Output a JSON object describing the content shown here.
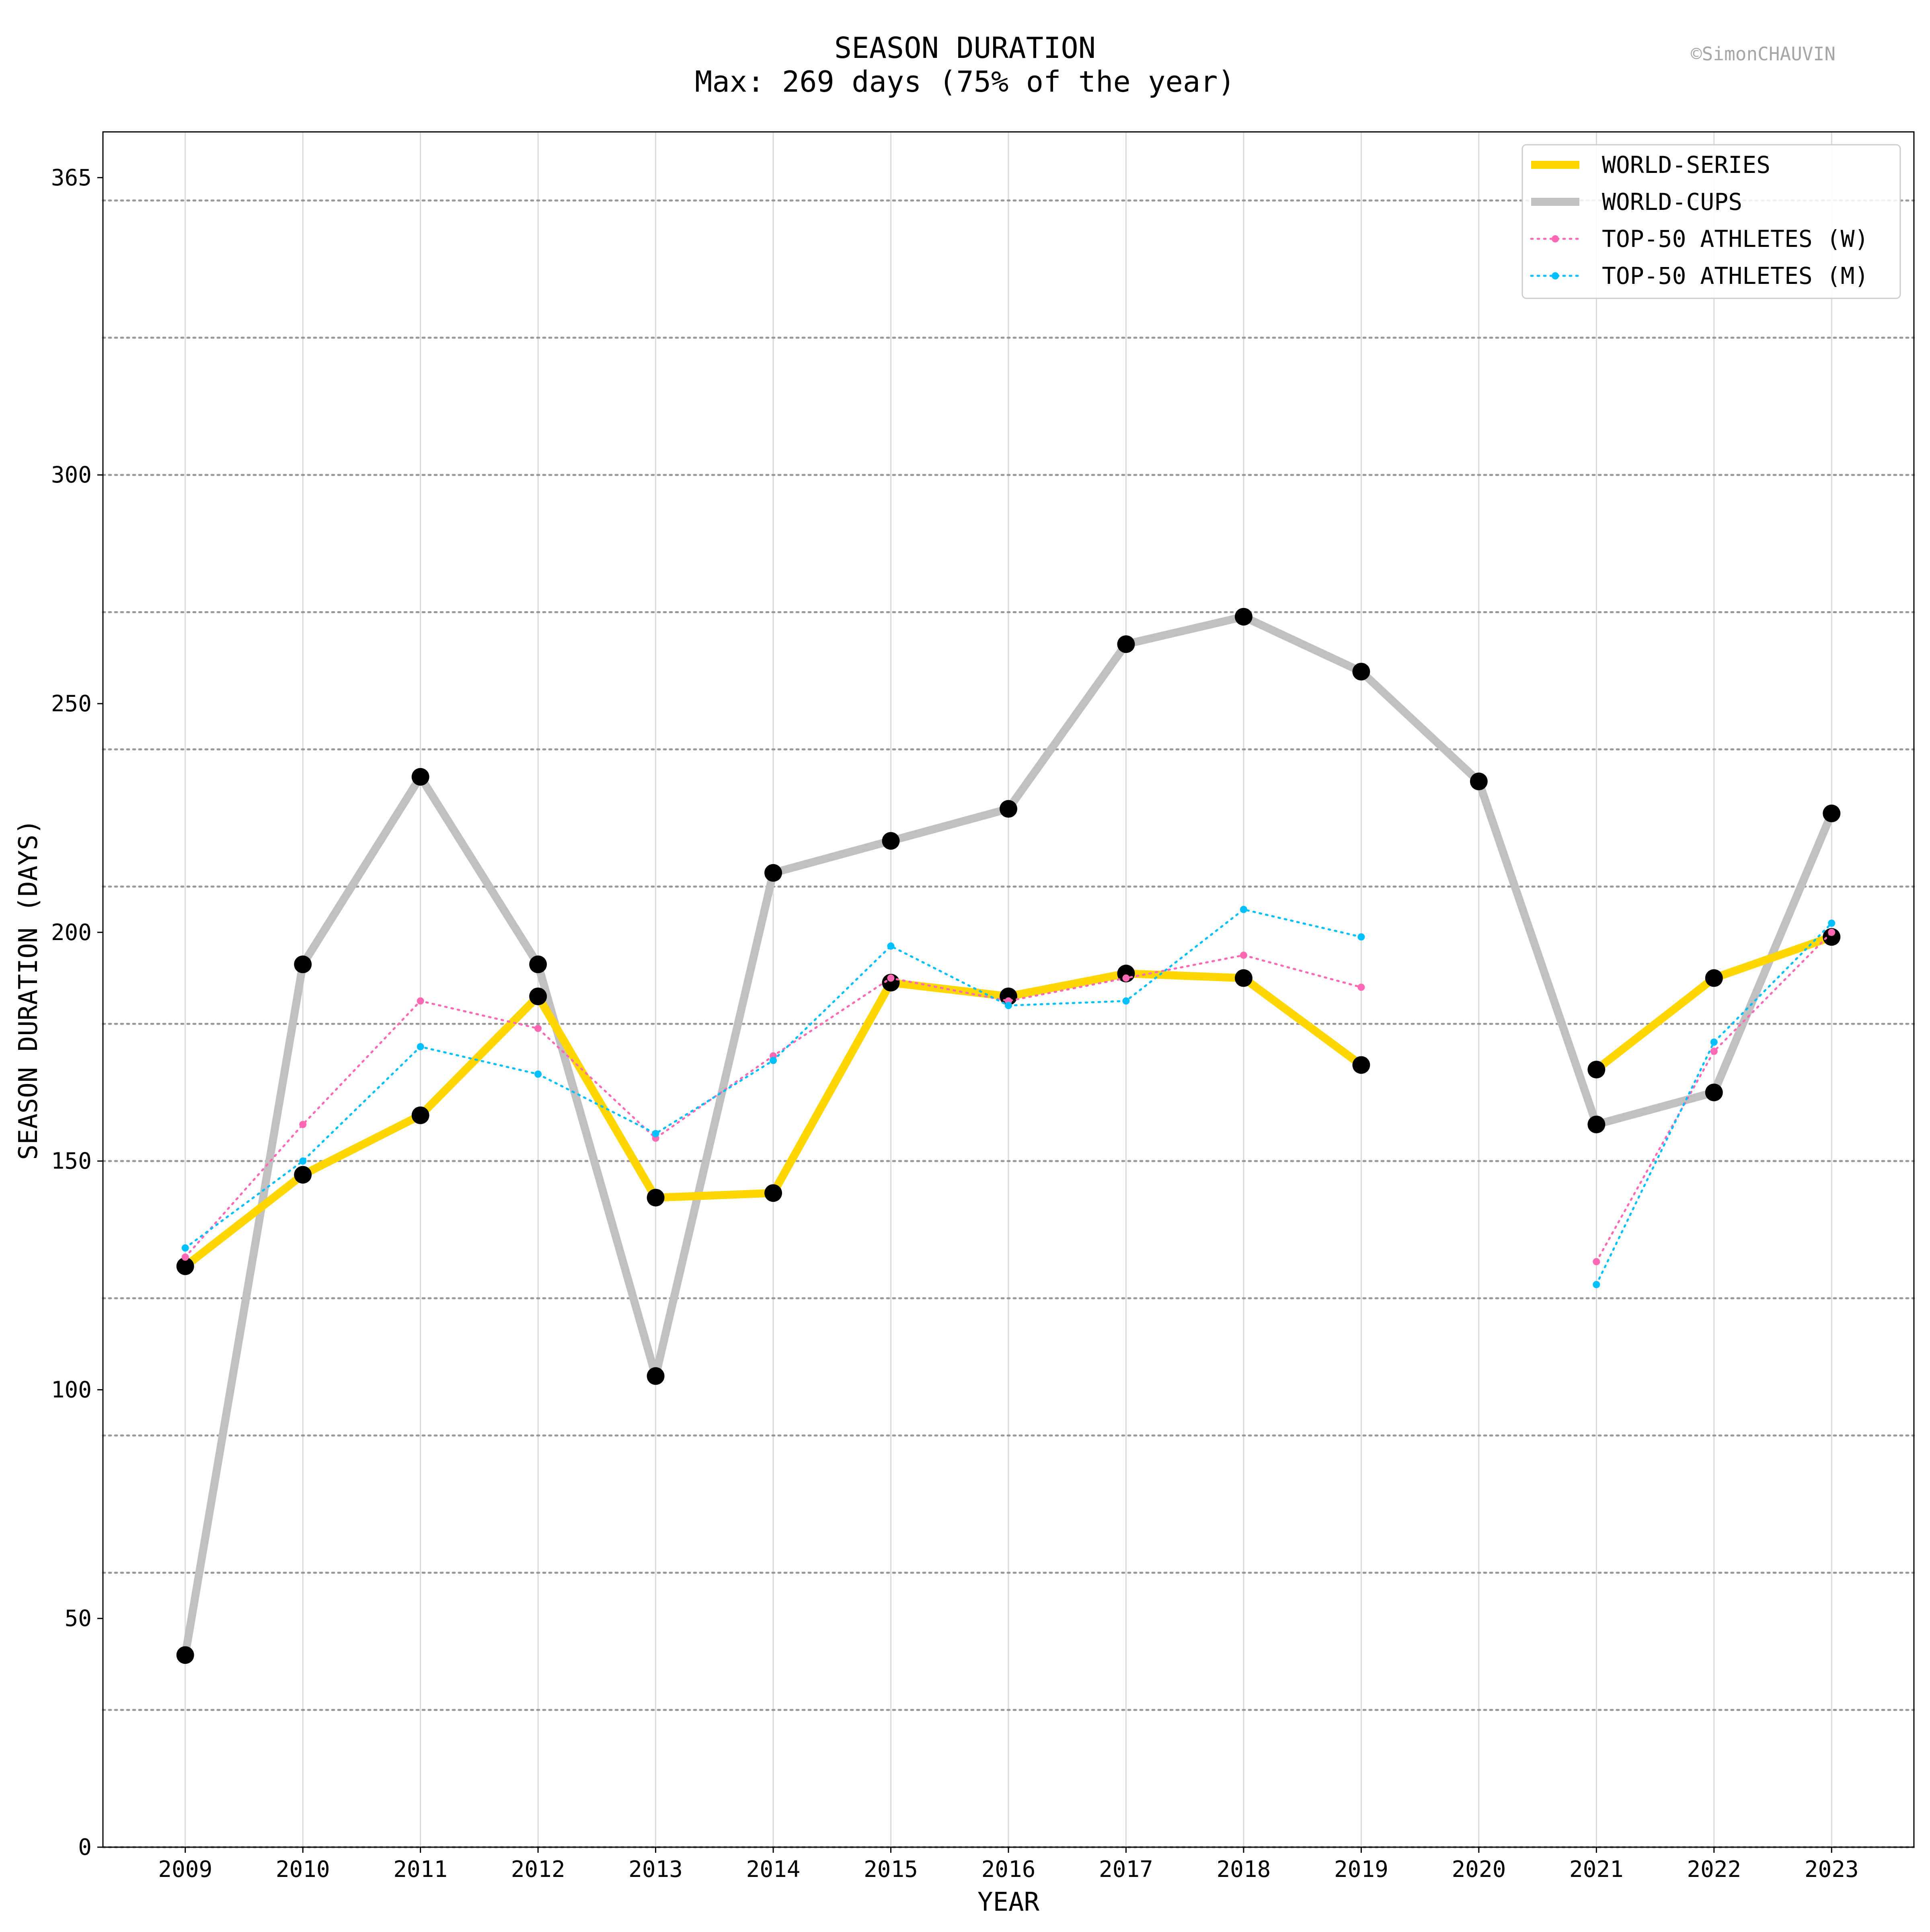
{
  "chart_data": {
    "type": "line",
    "title": "SEASON DURATION",
    "subtitle": "Max: 269 days (75% of the year)",
    "watermark": "©SimonCHAUVIN",
    "xlabel": "YEAR",
    "ylabel": "SEASON DURATION (DAYS)",
    "x": [
      2009,
      2010,
      2011,
      2012,
      2013,
      2014,
      2015,
      2016,
      2017,
      2018,
      2019,
      2020,
      2021,
      2022,
      2023
    ],
    "x_ticks": [
      "2009",
      "2010",
      "2011",
      "2012",
      "2013",
      "2014",
      "2015",
      "2016",
      "2017",
      "2018",
      "2019",
      "2020",
      "2021",
      "2022",
      "2023"
    ],
    "y_ticks": [
      0,
      50,
      100,
      150,
      200,
      250,
      300,
      365
    ],
    "y_tick_labels": [
      "0",
      "50",
      "100",
      "150",
      "200",
      "250",
      "300",
      "365"
    ],
    "y_dotted_gridlines": [
      0,
      30,
      60,
      90,
      120,
      150,
      180,
      210,
      240,
      270,
      300,
      330,
      360
    ],
    "xlim": [
      2008.3,
      2023.7
    ],
    "ylim": [
      0,
      375
    ],
    "grid": "vertical solid at each year; horizontal dotted every 30 days",
    "legend_position": "top-right",
    "series": [
      {
        "name": "WORLD-SERIES",
        "color": "#ffd700",
        "style": "thick-solid",
        "markers": "large-black",
        "values": [
          127,
          147,
          160,
          186,
          142,
          143,
          189,
          186,
          191,
          190,
          171,
          null,
          170,
          190,
          199
        ]
      },
      {
        "name": "WORLD-CUPS",
        "color": "#c0c0c0",
        "style": "thick-solid",
        "markers": "large-black",
        "values": [
          42,
          193,
          234,
          193,
          103,
          213,
          220,
          227,
          263,
          269,
          257,
          233,
          158,
          165,
          226
        ]
      },
      {
        "name": "TOP-50 ATHLETES (W)",
        "color": "#ff69b4",
        "style": "dotted",
        "markers": "small-colored",
        "values": [
          129,
          158,
          185,
          179,
          155,
          173,
          190,
          185,
          190,
          195,
          188,
          null,
          128,
          174,
          200
        ]
      },
      {
        "name": "TOP-50 ATHLETES (M)",
        "color": "#00bfff",
        "style": "dotted",
        "markers": "small-colored",
        "values": [
          131,
          150,
          175,
          169,
          156,
          172,
          197,
          184,
          185,
          205,
          199,
          null,
          123,
          176,
          202
        ]
      }
    ]
  }
}
